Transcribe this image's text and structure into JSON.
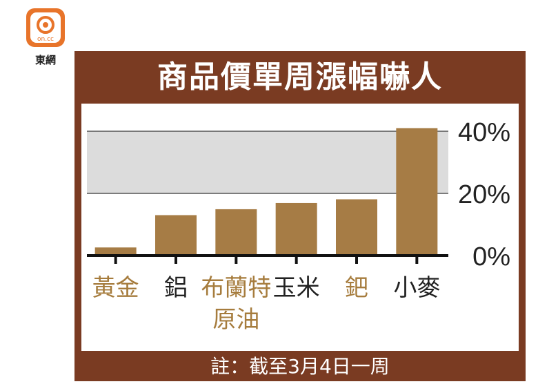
{
  "logo": {
    "text": "東網",
    "brand_color": "#e8742a"
  },
  "title": "商品價單周漲幅嚇人",
  "note": "註：截至3月4日一周",
  "chart_data": {
    "type": "bar",
    "title": "商品價單周漲幅嚇人",
    "categories": [
      "黃金",
      "鋁",
      "布蘭特原油",
      "玉米",
      "鈀",
      "小麥"
    ],
    "category_lines": [
      [
        "黃金"
      ],
      [
        "鋁"
      ],
      [
        "布蘭特",
        "原油"
      ],
      [
        "玉米"
      ],
      [
        "鈀"
      ],
      [
        "小麥"
      ]
    ],
    "label_colors": [
      "#a67c3d",
      "#222222",
      "#a67c3d",
      "#222222",
      "#a67c3d",
      "#222222"
    ],
    "values": [
      2.6,
      13.0,
      14.9,
      16.9,
      18.1,
      41.0
    ],
    "unit": "%",
    "ylim": [
      0,
      40
    ],
    "yticks": [
      "0%",
      "20%",
      "40%"
    ],
    "ytick_values": [
      0,
      20,
      40
    ],
    "highlight_band": [
      20,
      40
    ],
    "bar_color": "#a67c45",
    "band_color": "#dcdcdc",
    "frame_color": "#7a3b22"
  }
}
